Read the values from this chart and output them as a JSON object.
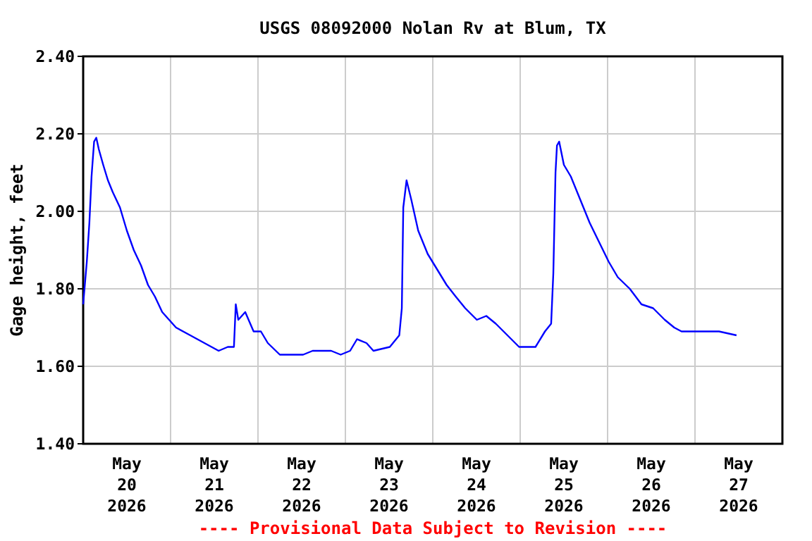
{
  "chart_data": {
    "type": "line",
    "title": "USGS 08092000 Nolan Rv at Blum, TX",
    "ylabel": "Gage height, feet",
    "annotations": [
      "---- Provisional Data Subject to Revision ----"
    ],
    "x": [
      "2026-05-20T00:00",
      "2026-05-20T01:00",
      "2026-05-20T01:42",
      "2026-05-20T02:18",
      "2026-05-20T03:00",
      "2026-05-20T03:36",
      "2026-05-20T04:18",
      "2026-05-20T05:30",
      "2026-05-20T06:48",
      "2026-05-20T08:06",
      "2026-05-20T10:06",
      "2026-05-20T12:00",
      "2026-05-20T13:54",
      "2026-05-20T15:54",
      "2026-05-20T17:48",
      "2026-05-20T19:42",
      "2026-05-20T21:42",
      "2026-05-20T23:36",
      "2026-05-21T01:30",
      "2026-05-21T05:24",
      "2026-05-21T09:18",
      "2026-05-21T13:12",
      "2026-05-21T15:42",
      "2026-05-21T17:24",
      "2026-05-21T17:54",
      "2026-05-21T18:36",
      "2026-05-21T20:30",
      "2026-05-21T22:48",
      "2026-05-22T00:48",
      "2026-05-22T02:42",
      "2026-05-22T06:00",
      "2026-05-22T09:48",
      "2026-05-22T12:24",
      "2026-05-22T15:00",
      "2026-05-22T20:06",
      "2026-05-22T22:42",
      "2026-05-23T01:18",
      "2026-05-23T03:12",
      "2026-05-23T05:48",
      "2026-05-23T07:42",
      "2026-05-23T12:12",
      "2026-05-23T14:48",
      "2026-05-23T15:30",
      "2026-05-23T15:54",
      "2026-05-23T16:48",
      "2026-05-23T18:06",
      "2026-05-23T20:00",
      "2026-05-23T22:36",
      "2026-05-24T01:12",
      "2026-05-24T03:48",
      "2026-05-24T06:18",
      "2026-05-24T08:54",
      "2026-05-24T12:06",
      "2026-05-24T14:42",
      "2026-05-24T17:18",
      "2026-05-24T20:30",
      "2026-05-24T23:42",
      "2026-05-25T04:12",
      "2026-05-25T06:48",
      "2026-05-25T08:30",
      "2026-05-25T09:06",
      "2026-05-25T09:42",
      "2026-05-25T10:06",
      "2026-05-25T10:42",
      "2026-05-25T12:00",
      "2026-05-25T13:54",
      "2026-05-25T16:30",
      "2026-05-25T19:06",
      "2026-05-25T21:42",
      "2026-05-26T00:18",
      "2026-05-26T02:48",
      "2026-05-26T06:06",
      "2026-05-26T09:18",
      "2026-05-26T12:30",
      "2026-05-26T15:42",
      "2026-05-26T18:18",
      "2026-05-26T20:18",
      "2026-05-27T01:24",
      "2026-05-27T06:36",
      "2026-05-27T11:24"
    ],
    "series": [
      {
        "color": "#0000ff",
        "values": [
          1.76,
          1.87,
          1.97,
          2.09,
          2.18,
          2.19,
          2.16,
          2.12,
          2.08,
          2.05,
          2.01,
          1.95,
          1.9,
          1.86,
          1.81,
          1.78,
          1.74,
          1.72,
          1.7,
          1.68,
          1.66,
          1.64,
          1.65,
          1.65,
          1.76,
          1.72,
          1.74,
          1.69,
          1.69,
          1.66,
          1.63,
          1.63,
          1.63,
          1.64,
          1.64,
          1.63,
          1.64,
          1.67,
          1.66,
          1.64,
          1.65,
          1.68,
          1.75,
          2.01,
          2.08,
          2.03,
          1.95,
          1.89,
          1.85,
          1.81,
          1.78,
          1.75,
          1.72,
          1.73,
          1.71,
          1.68,
          1.65,
          1.65,
          1.69,
          1.71,
          1.84,
          2.1,
          2.17,
          2.18,
          2.12,
          2.09,
          2.03,
          1.97,
          1.92,
          1.87,
          1.83,
          1.8,
          1.76,
          1.75,
          1.72,
          1.7,
          1.69,
          1.69,
          1.69,
          1.68
        ]
      }
    ],
    "xlim": [
      "2026-05-20T00:00",
      "2026-05-28T00:00"
    ],
    "xticks": [
      {
        "value": "2026-05-21T00:00",
        "label": null
      },
      {
        "value": "2026-05-22T00:00",
        "label": null
      },
      {
        "value": "2026-05-23T00:00",
        "label": null
      },
      {
        "value": "2026-05-24T00:00",
        "label": null
      },
      {
        "value": "2026-05-25T00:00",
        "label": null
      },
      {
        "value": "2026-05-26T00:00",
        "label": null
      },
      {
        "value": "2026-05-27T00:00",
        "label": null
      },
      {
        "value": "2026-05-20T12:00",
        "label": "May\n20\n2026"
      },
      {
        "value": "2026-05-21T12:00",
        "label": "May\n21\n2026"
      },
      {
        "value": "2026-05-22T12:00",
        "label": "May\n22\n2026"
      },
      {
        "value": "2026-05-23T12:00",
        "label": "May\n23\n2026"
      },
      {
        "value": "2026-05-24T12:00",
        "label": "May\n24\n2026"
      },
      {
        "value": "2026-05-25T12:00",
        "label": "May\n25\n2026"
      },
      {
        "value": "2026-05-26T12:00",
        "label": "May\n26\n2026"
      },
      {
        "value": "2026-05-27T12:00",
        "label": "May\n27\n2026"
      }
    ],
    "ylim": [
      1.4,
      2.4
    ],
    "yticks": [
      {
        "value": 1.4,
        "label": "1.40"
      },
      {
        "value": 1.6,
        "label": "1.60"
      },
      {
        "value": 1.8,
        "label": "1.80"
      },
      {
        "value": 2.0,
        "label": "2.00"
      },
      {
        "value": 2.2,
        "label": "2.20"
      },
      {
        "value": 2.4,
        "label": "2.40"
      }
    ],
    "grid": true,
    "line_style": "solid"
  }
}
